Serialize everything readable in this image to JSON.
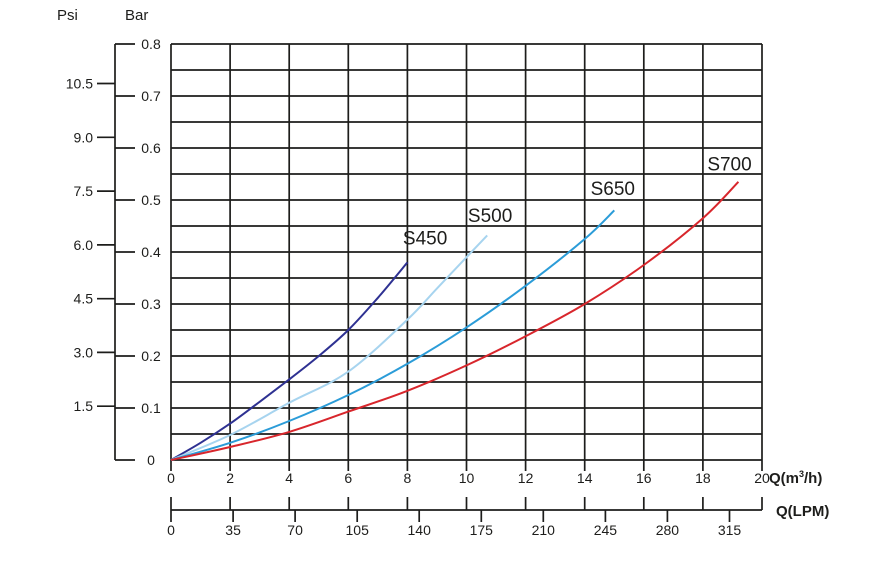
{
  "chart_data": {
    "type": "line",
    "grid": true,
    "legend_position": "inline-labels",
    "x_axis": {
      "title_pre": "Q(m",
      "title_sup": "3",
      "title_post": "/h)",
      "range": [
        0,
        20
      ],
      "ticks": [
        0,
        2,
        4,
        6,
        8,
        10,
        12,
        14,
        16,
        18,
        20
      ]
    },
    "x2_axis": {
      "title": "Q(LPM)",
      "ticks": [
        0,
        35,
        70,
        105,
        140,
        175,
        210,
        245,
        280,
        315
      ],
      "lpm_per_m3h": 16.6667
    },
    "y_axis_bar": {
      "title": "Bar",
      "range": [
        0,
        0.8
      ],
      "minor_step": 0.05,
      "ticks": [
        "0.8",
        "0.7",
        "0.6",
        "0.5",
        "0.4",
        "0.3",
        "0.2",
        "0.1",
        "0"
      ]
    },
    "y_axis_psi": {
      "title": "Psi",
      "ticks": [
        "10.5",
        "9.0",
        "7.5",
        "6.0",
        "4.5",
        "3.0",
        "1.5"
      ],
      "bar_per_psi": 0.0689476
    },
    "series": [
      {
        "name": "S450",
        "color": "#2e3192",
        "points": [
          [
            0,
            0
          ],
          [
            1,
            0.033
          ],
          [
            2,
            0.07
          ],
          [
            3,
            0.112
          ],
          [
            4,
            0.155
          ],
          [
            5,
            0.2
          ],
          [
            6,
            0.25
          ],
          [
            7,
            0.312
          ],
          [
            8,
            0.38
          ]
        ],
        "label_pos": [
          8.6,
          0.425
        ]
      },
      {
        "name": "S500",
        "color": "#a7d4ef",
        "points": [
          [
            0,
            0
          ],
          [
            2,
            0.048
          ],
          [
            4,
            0.11
          ],
          [
            6,
            0.17
          ],
          [
            8,
            0.27
          ],
          [
            9,
            0.33
          ],
          [
            10,
            0.39
          ],
          [
            10.7,
            0.432
          ]
        ],
        "label_pos": [
          10.8,
          0.468
        ]
      },
      {
        "name": "S650",
        "color": "#2b9cd8",
        "points": [
          [
            0,
            0
          ],
          [
            2,
            0.033
          ],
          [
            4,
            0.075
          ],
          [
            6,
            0.125
          ],
          [
            8,
            0.185
          ],
          [
            10,
            0.255
          ],
          [
            12,
            0.335
          ],
          [
            14,
            0.425
          ],
          [
            15,
            0.48
          ]
        ],
        "label_pos": [
          14.95,
          0.52
        ]
      },
      {
        "name": "S700",
        "color": "#d8262c",
        "points": [
          [
            0,
            0
          ],
          [
            2,
            0.025
          ],
          [
            4,
            0.054
          ],
          [
            6,
            0.093
          ],
          [
            8,
            0.133
          ],
          [
            10,
            0.182
          ],
          [
            12,
            0.238
          ],
          [
            14,
            0.3
          ],
          [
            16,
            0.375
          ],
          [
            18,
            0.465
          ],
          [
            19.2,
            0.535
          ]
        ],
        "label_pos": [
          18.9,
          0.567
        ]
      }
    ],
    "colors": {
      "grid": "#1d1d1b",
      "text": "#1d1d1b",
      "background": "#ffffff"
    }
  }
}
